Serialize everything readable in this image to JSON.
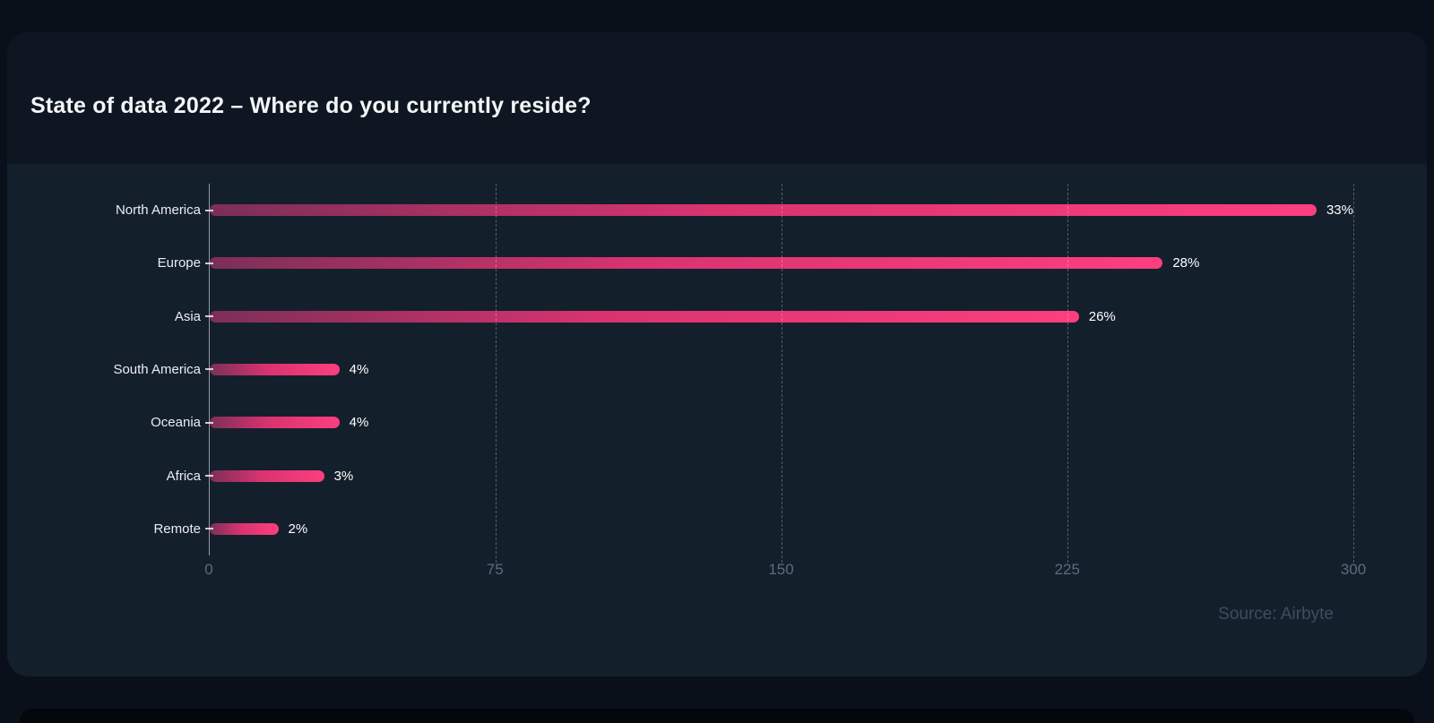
{
  "chart_data": {
    "type": "bar",
    "orientation": "horizontal",
    "title": "State of data 2022 – Where do you currently reside?",
    "source_label": "Source: Airbyte",
    "categories": [
      "North America",
      "Europe",
      "Asia",
      "South America",
      "Oceania",
      "Africa",
      "Remote"
    ],
    "values": [
      294,
      250,
      228,
      34,
      34,
      30,
      18
    ],
    "value_labels": [
      "33%",
      "28%",
      "26%",
      "4%",
      "4%",
      "3%",
      "2%"
    ],
    "x_ticks": [
      0,
      75,
      150,
      225,
      300
    ],
    "xlim": [
      0,
      300
    ],
    "grid": "vertical-dashed",
    "legend": "none",
    "colors": {
      "bar_gradient_start": "#7c2f57",
      "bar_gradient_mid": "#d93370",
      "bar_gradient_end": "#fd3e7e",
      "card_bg": "#141f2c",
      "header_bg": "#0d1621",
      "page_bg": "#0a101a",
      "axis_label": "#5d6b7b",
      "source_text": "#3c4d61"
    }
  }
}
